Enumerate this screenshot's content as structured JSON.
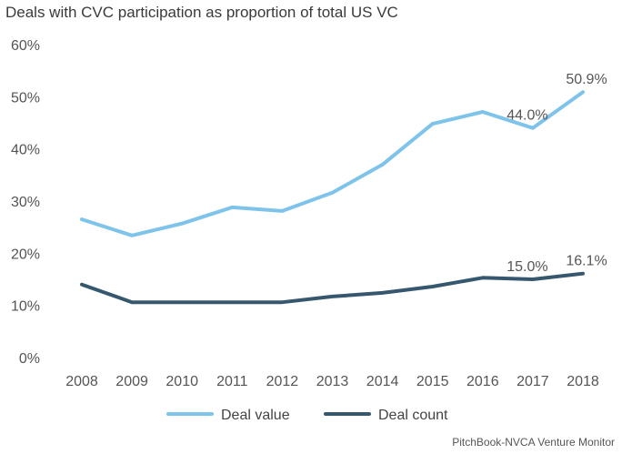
{
  "title": "Deals with CVC participation as proportion of total US VC",
  "source": "PitchBook-NVCA Venture Monitor",
  "chart_data": {
    "type": "line",
    "title": "Deals with CVC participation as proportion of total US VC",
    "x": [
      "2008",
      "2009",
      "2010",
      "2011",
      "2012",
      "2013",
      "2014",
      "2015",
      "2016",
      "2017",
      "2018"
    ],
    "ylim": [
      0,
      60
    ],
    "yticks": [
      "0%",
      "10%",
      "20%",
      "30%",
      "40%",
      "50%",
      "60%"
    ],
    "grid": false,
    "legend_position": "bottom",
    "series": [
      {
        "name": "Deal value",
        "color": "#7ec3ea",
        "values": [
          26.5,
          23.4,
          25.7,
          28.8,
          28.1,
          31.6,
          37.0,
          44.8,
          47.1,
          44.0,
          50.9
        ],
        "labels": [
          null,
          null,
          null,
          null,
          null,
          null,
          null,
          null,
          null,
          "44.0%",
          "50.9%"
        ]
      },
      {
        "name": "Deal count",
        "color": "#36586f",
        "values": [
          14.0,
          10.6,
          10.6,
          10.6,
          10.6,
          11.7,
          12.4,
          13.6,
          15.3,
          15.0,
          16.1
        ],
        "labels": [
          null,
          null,
          null,
          null,
          null,
          null,
          null,
          null,
          null,
          "15.0%",
          "16.1%"
        ]
      }
    ]
  }
}
